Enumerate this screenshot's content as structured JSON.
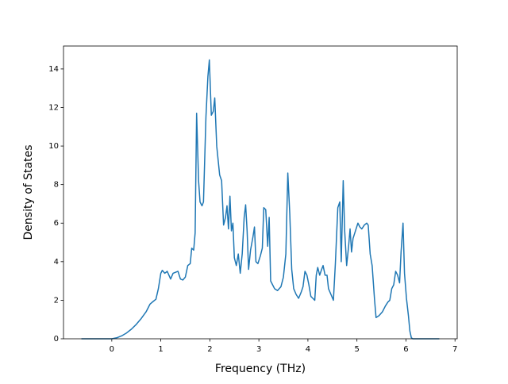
{
  "chart_data": {
    "type": "line",
    "xlabel": "Frequency (THz)",
    "ylabel": "Density of States",
    "xlim": [
      -0.985,
      7.045
    ],
    "ylim": [
      0,
      15.19
    ],
    "xticks": [
      0,
      1,
      2,
      3,
      4,
      5,
      6,
      7
    ],
    "yticks": [
      0,
      2,
      4,
      6,
      8,
      10,
      12,
      14
    ],
    "series": [
      {
        "color": "#1f77b4",
        "x": [
          -0.62,
          0,
          0.1,
          0.2,
          0.3,
          0.4,
          0.5,
          0.6,
          0.7,
          0.78,
          0.85,
          0.9,
          0.95,
          1.0,
          1.03,
          1.08,
          1.13,
          1.2,
          1.25,
          1.35,
          1.4,
          1.45,
          1.5,
          1.55,
          1.6,
          1.63,
          1.67,
          1.7,
          1.73,
          1.77,
          1.8,
          1.84,
          1.87,
          1.92,
          1.96,
          1.99,
          2.03,
          2.07,
          2.1,
          2.14,
          2.2,
          2.24,
          2.28,
          2.32,
          2.35,
          2.38,
          2.41,
          2.44,
          2.47,
          2.5,
          2.54,
          2.58,
          2.62,
          2.66,
          2.7,
          2.73,
          2.76,
          2.79,
          2.83,
          2.88,
          2.91,
          2.94,
          2.98,
          3.03,
          3.07,
          3.1,
          3.14,
          3.18,
          3.21,
          3.24,
          3.28,
          3.32,
          3.38,
          3.45,
          3.5,
          3.55,
          3.59,
          3.63,
          3.67,
          3.71,
          3.76,
          3.81,
          3.86,
          3.9,
          3.94,
          3.98,
          4.02,
          4.06,
          4.1,
          4.14,
          4.17,
          4.2,
          4.24,
          4.28,
          4.31,
          4.35,
          4.39,
          4.42,
          4.47,
          4.52,
          4.56,
          4.61,
          4.65,
          4.68,
          4.72,
          4.75,
          4.79,
          4.83,
          4.86,
          4.89,
          4.92,
          4.97,
          5.02,
          5.06,
          5.1,
          5.15,
          5.2,
          5.23,
          5.27,
          5.31,
          5.36,
          5.39,
          5.45,
          5.52,
          5.58,
          5.63,
          5.67,
          5.71,
          5.75,
          5.79,
          5.83,
          5.87,
          5.9,
          5.94,
          5.97,
          6.01,
          6.05,
          6.08,
          6.11,
          6.14,
          6.68
        ],
        "values": [
          0,
          0,
          0.05,
          0.15,
          0.3,
          0.5,
          0.75,
          1.05,
          1.4,
          1.8,
          1.95,
          2.05,
          2.6,
          3.4,
          3.55,
          3.4,
          3.5,
          3.1,
          3.4,
          3.5,
          3.1,
          3.05,
          3.2,
          3.8,
          3.9,
          4.7,
          4.6,
          5.5,
          11.7,
          8.2,
          7.1,
          6.9,
          7.1,
          11.5,
          13.6,
          14.47,
          11.6,
          11.8,
          12.5,
          10,
          8.5,
          8.2,
          5.9,
          6.3,
          6.9,
          5.7,
          7.4,
          5.6,
          6.0,
          4.2,
          3.8,
          4.4,
          3.4,
          4.4,
          6.3,
          6.95,
          5.6,
          3.6,
          4.6,
          5.3,
          5.8,
          4.0,
          3.9,
          4.3,
          4.7,
          6.8,
          6.7,
          4.8,
          6.3,
          3.0,
          2.8,
          2.6,
          2.5,
          2.7,
          3.2,
          4.4,
          8.6,
          6.5,
          3.6,
          2.6,
          2.3,
          2.1,
          2.4,
          2.7,
          3.5,
          3.3,
          2.8,
          2.2,
          2.1,
          2.0,
          3.3,
          3.7,
          3.3,
          3.6,
          3.8,
          3.3,
          3.3,
          2.6,
          2.3,
          2.0,
          3.9,
          6.8,
          7.1,
          4.0,
          8.2,
          5.6,
          3.8,
          4.8,
          5.7,
          4.5,
          5.2,
          5.6,
          6.0,
          5.8,
          5.7,
          5.9,
          6.0,
          5.9,
          4.4,
          3.8,
          2.0,
          1.1,
          1.2,
          1.4,
          1.7,
          1.9,
          2.0,
          2.6,
          2.8,
          3.5,
          3.3,
          2.9,
          4.5,
          6.0,
          3.4,
          2.1,
          1.2,
          0.4,
          0.05,
          0,
          0
        ]
      }
    ]
  }
}
